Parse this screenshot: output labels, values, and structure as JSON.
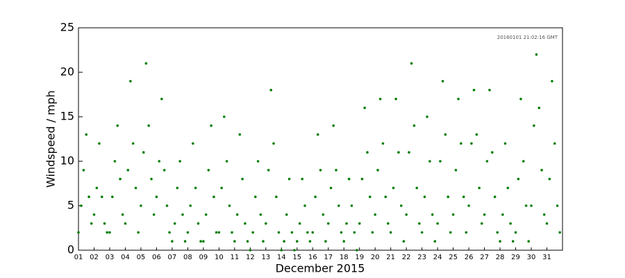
{
  "chart_data": {
    "type": "scatter",
    "annotation": "20160101 21:02:16 GMT",
    "ylabel": "Windspeed / mph",
    "xlabel": "December 2015",
    "color": "#007f00",
    "grid": false,
    "xlim": [
      1,
      32
    ],
    "ylim": [
      0,
      25
    ],
    "yticks": [
      0,
      5,
      10,
      15,
      20,
      25
    ],
    "xticks": [
      {
        "value": 1,
        "label": "01"
      },
      {
        "value": 2,
        "label": "02"
      },
      {
        "value": 3,
        "label": "03"
      },
      {
        "value": 4,
        "label": "04"
      },
      {
        "value": 5,
        "label": "05"
      },
      {
        "value": 6,
        "label": "06"
      },
      {
        "value": 7,
        "label": "07"
      },
      {
        "value": 8,
        "label": "08"
      },
      {
        "value": 9,
        "label": "09"
      },
      10,
      11,
      12,
      13,
      14,
      15,
      16,
      17,
      18,
      19,
      20,
      21,
      22,
      23,
      24,
      25,
      26,
      27,
      28,
      29,
      30,
      31
    ],
    "x": [
      1,
      1.17,
      1.33,
      1.5,
      1.67,
      1.83,
      2,
      2.17,
      2.33,
      2.5,
      2.67,
      2.83,
      3,
      3.17,
      3.33,
      3.5,
      3.67,
      3.83,
      4,
      4.17,
      4.33,
      4.5,
      4.67,
      4.83,
      5,
      5.17,
      5.33,
      5.5,
      5.67,
      5.83,
      6,
      6.17,
      6.33,
      6.5,
      6.67,
      6.83,
      7,
      7.17,
      7.33,
      7.5,
      7.67,
      7.83,
      8,
      8.17,
      8.33,
      8.5,
      8.67,
      8.83,
      9,
      9.17,
      9.33,
      9.5,
      9.67,
      9.83,
      10,
      10.17,
      10.33,
      10.5,
      10.67,
      10.83,
      11,
      11.17,
      11.33,
      11.5,
      11.67,
      11.83,
      12,
      12.17,
      12.33,
      12.5,
      12.67,
      12.83,
      13,
      13.17,
      13.33,
      13.5,
      13.67,
      13.83,
      14,
      14.17,
      14.33,
      14.5,
      14.67,
      14.83,
      15,
      15.17,
      15.33,
      15.5,
      15.67,
      15.83,
      16,
      16.17,
      16.33,
      16.5,
      16.67,
      16.83,
      17,
      17.17,
      17.33,
      17.5,
      17.67,
      17.83,
      18,
      18.17,
      18.33,
      18.5,
      18.67,
      18.83,
      19,
      19.17,
      19.33,
      19.5,
      19.67,
      19.83,
      20,
      20.17,
      20.33,
      20.5,
      20.67,
      20.83,
      21,
      21.17,
      21.33,
      21.5,
      21.67,
      21.83,
      22,
      22.17,
      22.33,
      22.5,
      22.67,
      22.83,
      23,
      23.17,
      23.33,
      23.5,
      23.67,
      23.83,
      24,
      24.17,
      24.33,
      24.5,
      24.67,
      24.83,
      25,
      25.17,
      25.33,
      25.5,
      25.67,
      25.83,
      26,
      26.17,
      26.33,
      26.5,
      26.67,
      26.83,
      27,
      27.17,
      27.33,
      27.5,
      27.67,
      27.83,
      28,
      28.17,
      28.33,
      28.5,
      28.67,
      28.83,
      29,
      29.17,
      29.33,
      29.5,
      29.67,
      29.83,
      30,
      30.17,
      30.33,
      30.5,
      30.67,
      30.83,
      31,
      31.17,
      31.33,
      31.5,
      31.67,
      31.83
    ],
    "values": [
      2,
      5,
      9,
      13,
      6,
      3,
      4,
      7,
      12,
      6,
      3,
      2,
      2,
      6,
      10,
      14,
      8,
      4,
      3,
      9,
      19,
      12,
      7,
      2,
      5,
      11,
      21,
      14,
      8,
      4,
      6,
      10,
      17,
      9,
      5,
      2,
      1,
      3,
      7,
      10,
      4,
      1,
      2,
      5,
      12,
      7,
      3,
      1,
      1,
      4,
      9,
      14,
      6,
      2,
      2,
      7,
      15,
      10,
      5,
      2,
      1,
      4,
      13,
      8,
      3,
      1,
      0,
      2,
      6,
      10,
      4,
      1,
      3,
      9,
      18,
      12,
      6,
      2,
      0,
      1,
      4,
      8,
      2,
      0,
      1,
      3,
      8,
      5,
      2,
      1,
      2,
      6,
      13,
      9,
      4,
      1,
      3,
      7,
      14,
      9,
      5,
      2,
      1,
      3,
      8,
      5,
      2,
      0,
      3,
      8,
      16,
      11,
      6,
      2,
      4,
      9,
      17,
      12,
      6,
      3,
      2,
      7,
      17,
      11,
      5,
      1,
      4,
      11,
      21,
      14,
      7,
      3,
      2,
      6,
      15,
      10,
      4,
      1,
      3,
      10,
      19,
      13,
      6,
      2,
      4,
      9,
      17,
      12,
      6,
      2,
      5,
      12,
      18,
      13,
      7,
      3,
      4,
      10,
      18,
      11,
      6,
      2,
      1,
      4,
      12,
      7,
      3,
      1,
      2,
      8,
      17,
      10,
      5,
      1,
      5,
      14,
      22,
      16,
      9,
      4,
      3,
      8,
      19,
      12,
      5,
      2
    ]
  }
}
